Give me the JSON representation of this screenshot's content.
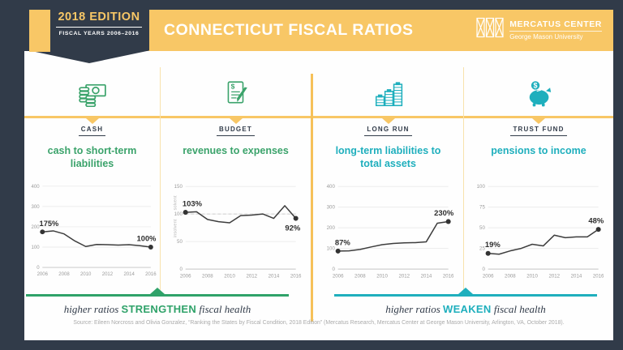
{
  "header": {
    "edition": {
      "title": "2018 EDITION",
      "subtitle": "FISCAL YEARS 2006–2016"
    },
    "title": "CONNECTICUT FISCAL RATIOS",
    "logo": {
      "name": "MERCATUS CENTER",
      "subname": "George Mason University"
    }
  },
  "colors": {
    "navy": "#313B49",
    "yellow": "#F8C766",
    "green": "#2FA269",
    "teal": "#1FAFBD",
    "chart_line": "#3D3D3D",
    "axis_text": "#9B9B9B"
  },
  "panels": [
    {
      "category": "CASH",
      "subtitle": "cash to short-term liabilities",
      "icon": "cash-icon",
      "accent": "green"
    },
    {
      "category": "BUDGET",
      "subtitle": "revenues to expenses",
      "icon": "budget-icon",
      "accent": "green"
    },
    {
      "category": "LONG RUN",
      "subtitle": "long-term liabilities to total assets",
      "icon": "long-run-icon",
      "accent": "teal"
    },
    {
      "category": "TRUST FUND",
      "subtitle": "pensions to income",
      "icon": "piggy-bank-icon",
      "accent": "teal"
    }
  ],
  "chart_data": [
    {
      "type": "line",
      "title": "cash to short-term liabilities",
      "category": "CASH",
      "x": [
        2006,
        2007,
        2008,
        2009,
        2010,
        2011,
        2012,
        2013,
        2014,
        2015,
        2016
      ],
      "values": [
        175,
        180,
        165,
        130,
        103,
        113,
        112,
        110,
        112,
        107,
        100
      ],
      "first_label": "175%",
      "last_label": "100%",
      "last_label_pos": "above",
      "ylim": [
        0,
        400
      ],
      "yticks": [
        0,
        100,
        200,
        300,
        400
      ],
      "xticks": [
        2006,
        2008,
        2010,
        2012,
        2014,
        2016
      ],
      "grid": true,
      "legend": "none"
    },
    {
      "type": "line",
      "title": "revenues to expenses",
      "category": "BUDGET",
      "x": [
        2006,
        2007,
        2008,
        2009,
        2010,
        2011,
        2012,
        2013,
        2014,
        2015,
        2016
      ],
      "values": [
        103,
        104,
        90,
        86,
        84,
        97,
        98,
        100,
        92,
        115,
        92
      ],
      "first_label": "103%",
      "last_label": "92%",
      "last_label_pos": "below",
      "ylim": [
        0,
        150
      ],
      "yticks": [
        0,
        50,
        100,
        150
      ],
      "xticks": [
        2006,
        2008,
        2010,
        2012,
        2014,
        2016
      ],
      "ref_line": 100,
      "axis_annotations": {
        "above": "solvent",
        "below": "insolvent"
      },
      "grid": true,
      "legend": "none"
    },
    {
      "type": "line",
      "title": "long-term liabilities to total assets",
      "category": "LONG RUN",
      "x": [
        2006,
        2007,
        2008,
        2009,
        2010,
        2011,
        2012,
        2013,
        2014,
        2015,
        2016
      ],
      "values": [
        87,
        88,
        95,
        107,
        118,
        124,
        127,
        128,
        132,
        222,
        230
      ],
      "first_label": "87%",
      "last_label": "230%",
      "last_label_pos": "above",
      "ylim": [
        0,
        400
      ],
      "yticks": [
        0,
        100,
        200,
        300,
        400
      ],
      "xticks": [
        2006,
        2008,
        2010,
        2012,
        2014,
        2016
      ],
      "grid": true,
      "legend": "none"
    },
    {
      "type": "line",
      "title": "pensions to income",
      "category": "TRUST FUND",
      "x": [
        2006,
        2007,
        2008,
        2009,
        2010,
        2011,
        2012,
        2013,
        2014,
        2015,
        2016
      ],
      "values": [
        19,
        18,
        22,
        25,
        30,
        28,
        41,
        38,
        39,
        39,
        48
      ],
      "first_label": "19%",
      "last_label": "48%",
      "last_label_pos": "above",
      "ylim": [
        0,
        100
      ],
      "yticks": [
        0,
        25,
        50,
        75,
        100
      ],
      "xticks": [
        2006,
        2008,
        2010,
        2012,
        2014,
        2016
      ],
      "grid": true,
      "legend": "none"
    }
  ],
  "footer": {
    "left_banner": {
      "prefix": "higher ratios",
      "emphasis": "STRENGTHEN",
      "suffix": "fiscal health"
    },
    "right_banner": {
      "prefix": "higher ratios",
      "emphasis": "WEAKEN",
      "suffix": "fiscal health"
    },
    "source": "Source: Eileen Norcross and Olivia Gonzalez, “Ranking the States by Fiscal Condition, 2018 Edition” (Mercatus Research, Mercatus Center at George Mason University, Arlington, VA, October 2018)."
  }
}
